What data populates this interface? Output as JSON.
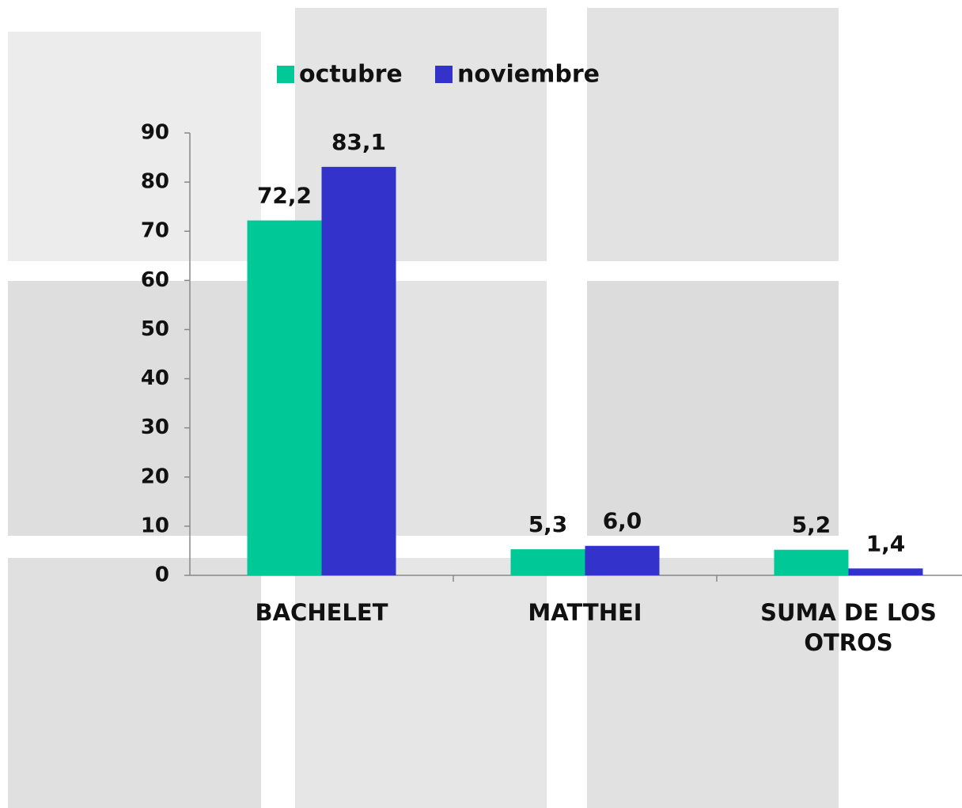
{
  "chart_data": {
    "type": "bar",
    "categories": [
      "BACHELET",
      "MATTHEI",
      "SUMA DE LOS OTROS"
    ],
    "series": [
      {
        "name": "octubre",
        "color": "#00c896",
        "values": [
          72.2,
          5.3,
          5.2
        ],
        "value_labels": [
          "72,2",
          "5,3",
          "5,2"
        ]
      },
      {
        "name": "noviembre",
        "color": "#3333cc",
        "values": [
          83.1,
          6.0,
          1.4
        ],
        "value_labels": [
          "83,1",
          "6,0",
          "1,4"
        ]
      }
    ],
    "ylim": [
      0,
      90
    ],
    "yticks": [
      0,
      10,
      20,
      30,
      40,
      50,
      60,
      70,
      80,
      90
    ],
    "grid": false,
    "legend": "top"
  }
}
